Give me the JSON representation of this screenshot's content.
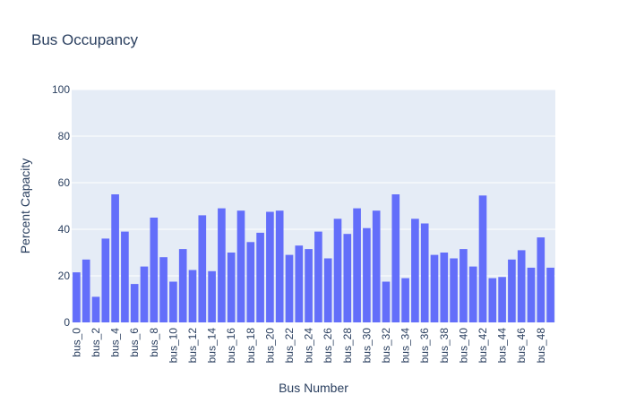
{
  "chart_data": {
    "type": "bar",
    "title": "Bus Occupancy",
    "xlabel": "Bus Number",
    "ylabel": "Percent Capacity",
    "ylim": [
      0,
      100
    ],
    "yticks": [
      0,
      20,
      40,
      60,
      80,
      100
    ],
    "grid": true,
    "bar_color": "#636efa",
    "plot_bg": "#e5ecf6",
    "categories": [
      "bus_0",
      "bus_1",
      "bus_2",
      "bus_3",
      "bus_4",
      "bus_5",
      "bus_6",
      "bus_7",
      "bus_8",
      "bus_9",
      "bus_10",
      "bus_11",
      "bus_12",
      "bus_13",
      "bus_14",
      "bus_15",
      "bus_16",
      "bus_17",
      "bus_18",
      "bus_19",
      "bus_20",
      "bus_21",
      "bus_22",
      "bus_23",
      "bus_24",
      "bus_25",
      "bus_26",
      "bus_27",
      "bus_28",
      "bus_29",
      "bus_30",
      "bus_31",
      "bus_32",
      "bus_33",
      "bus_34",
      "bus_35",
      "bus_36",
      "bus_37",
      "bus_38",
      "bus_39",
      "bus_40",
      "bus_41",
      "bus_42",
      "bus_43",
      "bus_44",
      "bus_45",
      "bus_46",
      "bus_47",
      "bus_48",
      "bus_49"
    ],
    "tick_labels": [
      "bus_0",
      "bus_2",
      "bus_4",
      "bus_6",
      "bus_8",
      "bus_10",
      "bus_12",
      "bus_14",
      "bus_16",
      "bus_18",
      "bus_20",
      "bus_22",
      "bus_24",
      "bus_26",
      "bus_28",
      "bus_30",
      "bus_32",
      "bus_34",
      "bus_36",
      "bus_38",
      "bus_40",
      "bus_42",
      "bus_44",
      "bus_46",
      "bus_48"
    ],
    "values": [
      21.5,
      27,
      11,
      36,
      55,
      39,
      16.5,
      24,
      45,
      28,
      17.5,
      31.5,
      22.5,
      46,
      22,
      49,
      30,
      48,
      34.5,
      38.5,
      47.5,
      48,
      29,
      33,
      31.5,
      39,
      27.5,
      44.5,
      38,
      49,
      40.5,
      48,
      17.5,
      55,
      19,
      44.5,
      42.5,
      29,
      30,
      27.5,
      31.5,
      24,
      54.5,
      19,
      19.5,
      27,
      31,
      23.5,
      36.5,
      23.5
    ]
  }
}
